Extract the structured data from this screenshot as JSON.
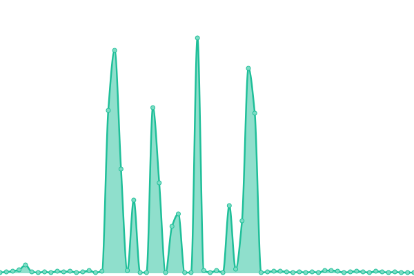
{
  "chart_data": {
    "type": "area",
    "color": "#1fbf99",
    "ylim": [
      0,
      396
    ],
    "values": [
      1,
      2,
      3,
      5,
      12,
      2,
      1,
      2,
      1,
      3,
      2,
      3,
      1,
      2,
      4,
      1,
      3,
      236,
      323,
      151,
      4,
      106,
      1,
      1,
      240,
      131,
      1,
      68,
      86,
      1,
      1,
      341,
      4,
      1,
      4,
      1,
      98,
      6,
      76,
      297,
      232,
      1,
      2,
      3,
      3,
      2,
      1,
      2,
      1,
      2,
      1,
      4,
      4,
      3,
      1,
      2,
      3,
      2,
      1,
      3,
      2,
      1,
      2,
      1,
      1,
      1
    ]
  }
}
